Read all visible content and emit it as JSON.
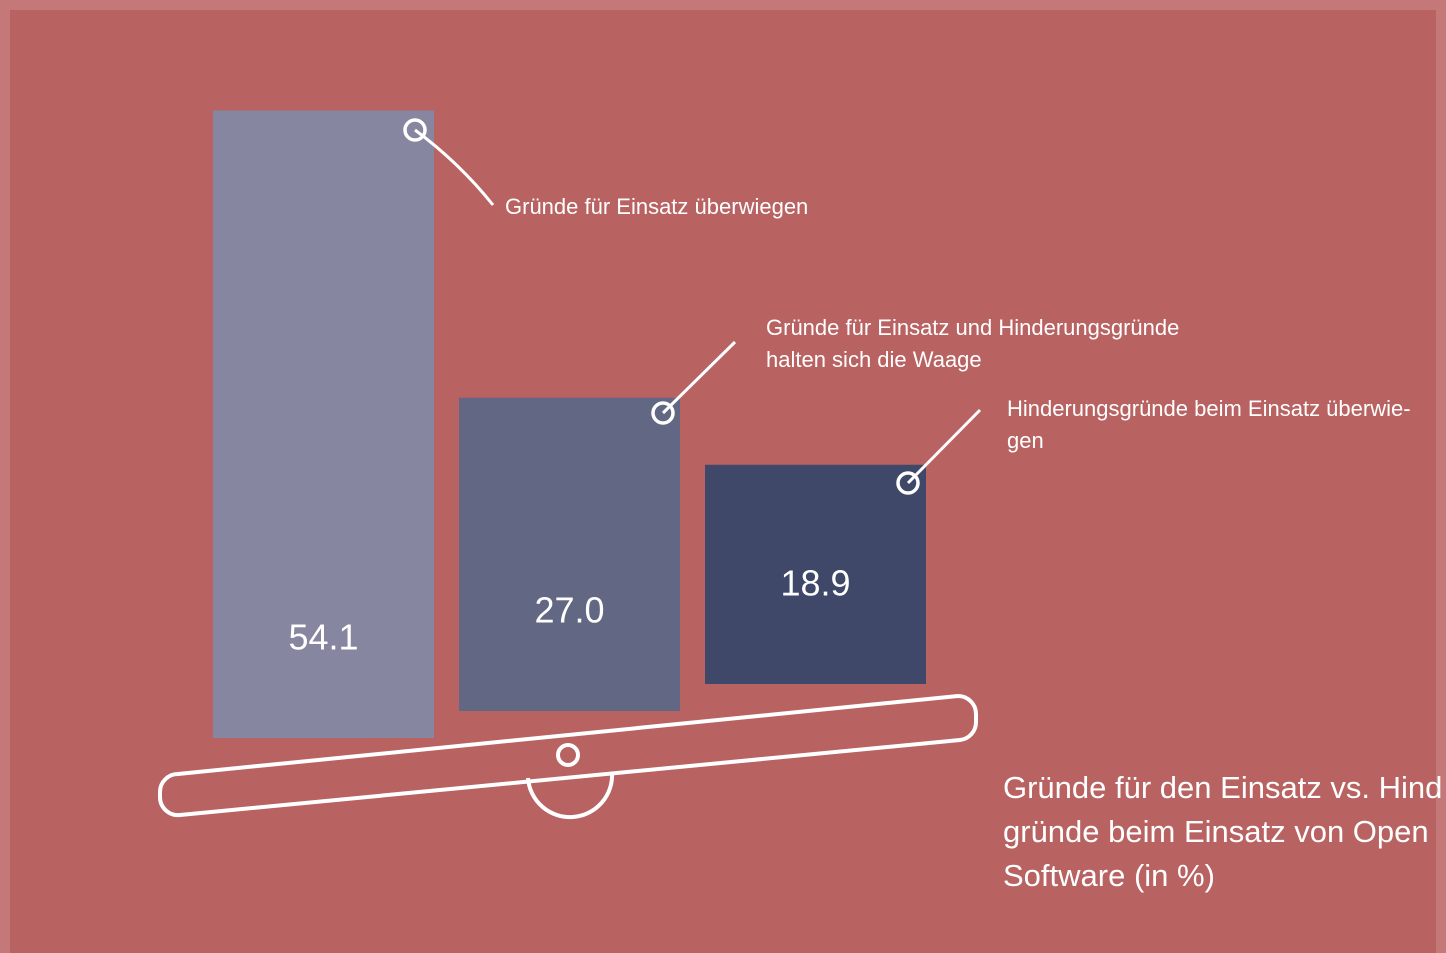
{
  "chart_data": {
    "type": "bar",
    "title_lines": [
      "Gründe für den Einsatz vs. Hind",
      "gründe beim Einsatz von Open",
      "Software (in %)"
    ],
    "categories": [
      [
        "Gründe für Einsatz überwiegen"
      ],
      [
        "Gründe für Einsatz und Hinderungsgründe",
        "halten sich die Waage"
      ],
      [
        "Hinderungsgründe beim Einsatz überwie-",
        "gen"
      ]
    ],
    "values": [
      54.1,
      27.0,
      18.9
    ],
    "value_labels": [
      "54.1",
      "27.0",
      "18.9"
    ],
    "colors": [
      "#8686a0",
      "#626783",
      "#3f4868"
    ]
  }
}
